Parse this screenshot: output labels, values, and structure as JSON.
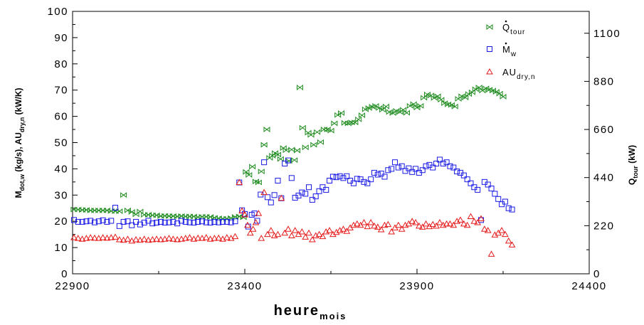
{
  "chart_data": {
    "type": "scatter",
    "title": "",
    "xlabel": {
      "main": "heure",
      "sub": "mois"
    },
    "ylabel_left": {
      "text": "M",
      "sub": "dot,w",
      "mid": " (kg/s), AU",
      "sub2": "dry,n",
      "tail": " (kW/K)"
    },
    "ylabel_right": {
      "text": "Q",
      "sub": "tour",
      "tail": " (kW)"
    },
    "xlim": [
      22900,
      24400
    ],
    "ylim_left": [
      0,
      100
    ],
    "ylim_right": [
      0,
      1200
    ],
    "x_ticks": [
      "22900",
      "23400",
      "23900",
      "24400"
    ],
    "y_ticks_left": [
      "0",
      "10",
      "20",
      "30",
      "40",
      "50",
      "60",
      "70",
      "80",
      "90",
      "100"
    ],
    "y_ticks_right": [
      "0",
      "220",
      "440",
      "660",
      "880",
      "1100"
    ],
    "grid": false,
    "legend_position": "top-right",
    "series": [
      {
        "name": "Q tour",
        "legend_main": "Q",
        "legend_sub": "tour",
        "axis": "right",
        "color": "#1e8c1e",
        "marker": "bowtie",
        "x": [
          22904,
          22916,
          22928,
          22940,
          22952,
          22964,
          22976,
          22988,
          23000,
          23012,
          23024,
          23036,
          23048,
          23060,
          23072,
          23084,
          23096,
          23108,
          23120,
          23132,
          23144,
          23156,
          23168,
          23180,
          23192,
          23204,
          23216,
          23228,
          23240,
          23252,
          23264,
          23276,
          23288,
          23300,
          23312,
          23324,
          23336,
          23348,
          23360,
          23372,
          23384,
          23396,
          23404,
          23412,
          23422,
          23432,
          23440,
          23448,
          23456,
          23464,
          23472,
          23480,
          23488,
          23496,
          23504,
          23512,
          23520,
          23528,
          23536,
          23544,
          23552,
          23560,
          23568,
          23576,
          23584,
          23592,
          23600,
          23610,
          23620,
          23630,
          23640,
          23650,
          23660,
          23670,
          23680,
          23690,
          23700,
          23710,
          23720,
          23730,
          23740,
          23750,
          23760,
          23770,
          23780,
          23790,
          23800,
          23810,
          23820,
          23830,
          23840,
          23850,
          23860,
          23870,
          23880,
          23890,
          23900,
          23910,
          23920,
          23930,
          23940,
          23950,
          23960,
          23970,
          23980,
          23990,
          24000,
          24010,
          24020,
          24030,
          24040,
          24050,
          24060,
          24070,
          24080,
          24090,
          24100,
          24110,
          24120,
          24130,
          24140,
          24150
        ],
        "y": [
          294,
          294,
          292,
          292,
          290,
          290,
          290,
          290,
          290,
          287,
          286,
          286,
          360,
          290,
          283,
          272,
          285,
          270,
          270,
          268,
          268,
          264,
          265,
          264,
          264,
          262,
          264,
          262,
          262,
          262,
          259,
          261,
          261,
          260,
          256,
          254,
          252,
          252,
          255,
          260,
          262,
          258,
          466,
          452,
          490,
          422,
          418,
          468,
          590,
          660,
          530,
          540,
          552,
          545,
          525,
          575,
          565,
          516,
          568,
          520,
          564,
          852,
          668,
          578,
          645,
          635,
          590,
          648,
          602,
          660,
          660,
          655,
          688,
          726,
          735,
          690,
          688,
          692,
          692,
          706,
          725,
          752,
          758,
          764,
          768,
          758,
          750,
          765,
          740,
          735,
          745,
          740,
          750,
          736,
          768,
          776,
          760,
          768,
          805,
          820,
          815,
          804,
          812,
          796,
          780,
          775,
          772,
          765,
          800,
          812,
          806,
          822,
          830,
          844,
          852,
          838,
          848,
          842,
          838,
          832,
          824,
          810
        ],
        "y_check": "see x list"
      },
      {
        "name": "M w",
        "legend_main": "M",
        "legend_sub": "w",
        "axis": "left",
        "color": "#1a1ae6",
        "marker": "square",
        "x": [
          22904,
          22916,
          22928,
          22940,
          22952,
          22964,
          22976,
          22988,
          23000,
          23012,
          23024,
          23036,
          23048,
          23060,
          23072,
          23084,
          23096,
          23108,
          23120,
          23132,
          23144,
          23156,
          23168,
          23180,
          23192,
          23204,
          23216,
          23228,
          23240,
          23252,
          23264,
          23276,
          23288,
          23300,
          23312,
          23324,
          23336,
          23348,
          23360,
          23372,
          23384,
          23392,
          23400,
          23410,
          23420,
          23428,
          23436,
          23446,
          23456,
          23466,
          23476,
          23486,
          23496,
          23506,
          23516,
          23526,
          23536,
          23546,
          23556,
          23566,
          23576,
          23586,
          23596,
          23606,
          23616,
          23626,
          23636,
          23646,
          23656,
          23666,
          23676,
          23686,
          23696,
          23706,
          23716,
          23726,
          23736,
          23746,
          23756,
          23766,
          23776,
          23786,
          23796,
          23806,
          23816,
          23826,
          23836,
          23846,
          23856,
          23866,
          23876,
          23886,
          23896,
          23906,
          23916,
          23926,
          23936,
          23946,
          23956,
          23966,
          23976,
          23986,
          23996,
          24006,
          24016,
          24026,
          24036,
          24046,
          24056,
          24066,
          24076,
          24086,
          24096,
          24106,
          24116,
          24126,
          24136,
          24146,
          24156,
          24166,
          24176
        ],
        "y": [
          20.5,
          19.8,
          19.8,
          20.0,
          20.2,
          19.6,
          20.0,
          20.4,
          19.8,
          20.2,
          25.2,
          18.2,
          19.8,
          20.0,
          18.5,
          19.8,
          18.8,
          19.5,
          20.2,
          19.2,
          19.5,
          19.8,
          19.5,
          19.6,
          19.8,
          19.2,
          20.2,
          19.8,
          19.6,
          19.5,
          19.8,
          20.0,
          19.6,
          19.5,
          19.8,
          19.6,
          19.8,
          19.8,
          19.6,
          20.0,
          34.8,
          24.2,
          22.8,
          18.0,
          22.5,
          23.0,
          20.2,
          30.2,
          42.5,
          29.2,
          27.2,
          30.0,
          35.5,
          28.8,
          42.0,
          43.2,
          36.5,
          29.0,
          29.8,
          31.0,
          30.5,
          33.0,
          28.2,
          29.5,
          31.5,
          33.0,
          32.0,
          35.5,
          37.0,
          36.8,
          37.2,
          36.5,
          37.2,
          35.5,
          34.5,
          36.2,
          36.0,
          35.0,
          34.5,
          36.0,
          38.5,
          37.8,
          38.2,
          37.0,
          39.5,
          40.0,
          42.5,
          40.5,
          41.0,
          39.2,
          40.2,
          38.8,
          40.0,
          38.5,
          39.5,
          41.0,
          41.5,
          40.5,
          42.0,
          43.5,
          42.0,
          42.5,
          41.0,
          40.5,
          39.0,
          38.5,
          37.5,
          36.0,
          34.5,
          33.0,
          32.0,
          20.5,
          35.0,
          34.0,
          32.5,
          30.5,
          28.5,
          26.5,
          27.5,
          25.0,
          24.5
        ],
        "y_check": "see x list"
      },
      {
        "name": "AU dry,n",
        "legend_main": "AU",
        "legend_sub": "dry,n",
        "axis": "left",
        "color": "#e61a1a",
        "marker": "triangle",
        "x": [
          22904,
          22916,
          22928,
          22940,
          22952,
          22964,
          22976,
          22988,
          23000,
          23012,
          23024,
          23036,
          23048,
          23060,
          23072,
          23084,
          23096,
          23108,
          23120,
          23132,
          23144,
          23156,
          23168,
          23180,
          23192,
          23204,
          23216,
          23228,
          23240,
          23252,
          23264,
          23276,
          23288,
          23300,
          23312,
          23324,
          23336,
          23348,
          23360,
          23372,
          23384,
          23392,
          23400,
          23408,
          23416,
          23424,
          23432,
          23440,
          23448,
          23456,
          23466,
          23476,
          23486,
          23496,
          23506,
          23516,
          23526,
          23536,
          23546,
          23556,
          23566,
          23576,
          23586,
          23596,
          23606,
          23616,
          23626,
          23636,
          23646,
          23656,
          23666,
          23676,
          23686,
          23696,
          23706,
          23716,
          23726,
          23736,
          23746,
          23756,
          23766,
          23776,
          23786,
          23796,
          23806,
          23816,
          23826,
          23836,
          23846,
          23856,
          23866,
          23876,
          23886,
          23896,
          23906,
          23916,
          23926,
          23936,
          23946,
          23956,
          23966,
          23976,
          23986,
          23996,
          24006,
          24016,
          24026,
          24036,
          24046,
          24056,
          24066,
          24076,
          24086,
          24096,
          24106,
          24116,
          24126,
          24136,
          24146,
          24156,
          24166,
          24176
        ],
        "y": [
          13.8,
          13.5,
          13.2,
          13.5,
          13.8,
          13.6,
          13.5,
          13.8,
          13.6,
          13.8,
          14.0,
          13.0,
          12.8,
          13.2,
          12.5,
          13.0,
          12.8,
          13.2,
          12.8,
          13.0,
          13.2,
          13.0,
          13.2,
          13.5,
          13.2,
          13.0,
          13.2,
          13.5,
          13.8,
          13.2,
          13.6,
          13.5,
          13.8,
          13.2,
          13.5,
          13.6,
          13.2,
          13.8,
          13.5,
          14.2,
          34.8,
          24.0,
          22.5,
          18.5,
          15.5,
          17.0,
          19.5,
          23.0,
          13.5,
          31.0,
          15.0,
          16.5,
          14.5,
          15.0,
          28.8,
          15.5,
          17.0,
          14.5,
          16.5,
          15.0,
          16.0,
          14.0,
          15.5,
          13.0,
          14.5,
          15.0,
          14.2,
          16.0,
          16.5,
          15.0,
          15.8,
          16.5,
          17.0,
          16.2,
          17.5,
          18.5,
          19.0,
          18.5,
          19.5,
          18.0,
          19.5,
          18.2,
          17.8,
          16.8,
          18.5,
          18.8,
          16.0,
          17.5,
          18.5,
          17.0,
          18.5,
          19.0,
          20.0,
          19.5,
          18.2,
          17.8,
          19.0,
          18.0,
          18.8,
          18.2,
          19.5,
          18.5,
          19.0,
          19.0,
          18.5,
          20.0,
          20.5,
          19.0,
          18.5,
          21.8,
          20.0,
          19.5,
          21.0,
          17.0,
          16.5,
          7.5,
          14.8,
          15.5,
          16.5,
          15.0,
          12.5,
          11.0
        ],
        "y_check": "see x list"
      }
    ]
  },
  "colors": {
    "axis": "#000000",
    "background": "#ffffff"
  }
}
